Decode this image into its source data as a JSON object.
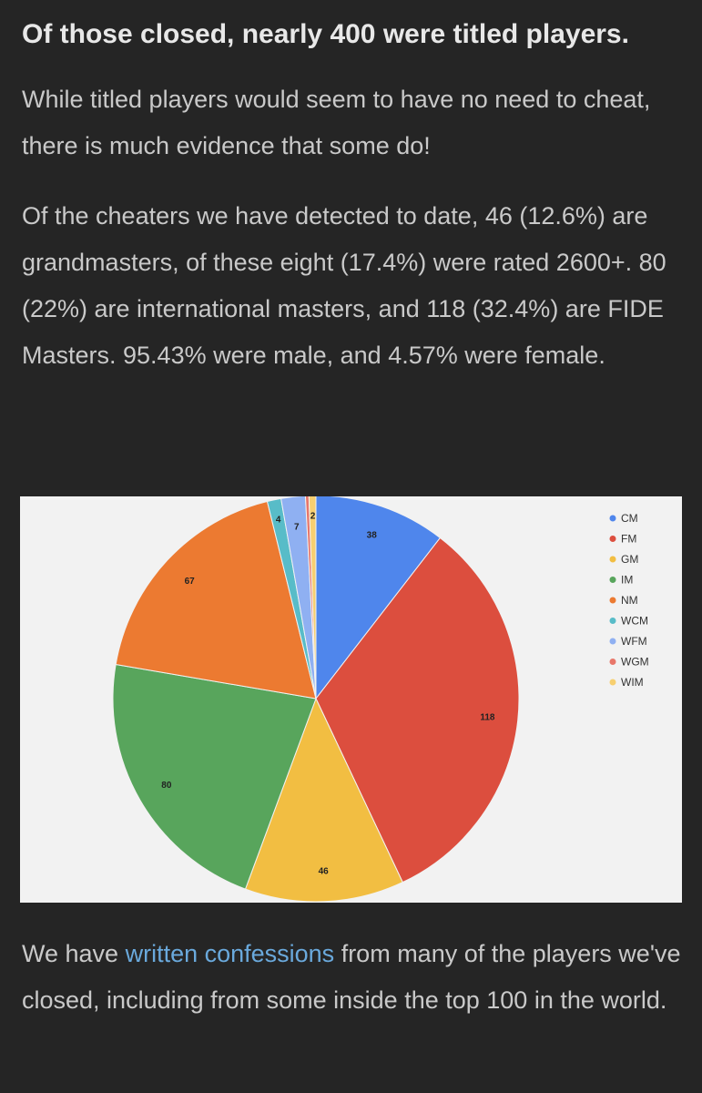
{
  "heading": "Of those closed, nearly 400 were titled players.",
  "paragraph1": "While titled players would seem to have no need to cheat, there is much evidence that some do!",
  "paragraph2": "Of the cheaters we have detected to date, 46 (12.6%) are grandmasters, of these eight (17.4%) were rated 2600+. 80 (22%) are international masters, and 118 (32.4%) are FIDE Masters. 95.43% were male, and 4.57% were female.",
  "paragraph3": {
    "before": "We have ",
    "link": "written confessions",
    "after": " from many of the players we've closed, including from some inside the top 100 in the world."
  },
  "chart_data": {
    "type": "pie",
    "title": "",
    "legend_position": "right",
    "categories": [
      "CM",
      "FM",
      "GM",
      "IM",
      "NM",
      "WCM",
      "WFM",
      "WGM",
      "WIM"
    ],
    "values": [
      38,
      118,
      46,
      80,
      67,
      4,
      7,
      1,
      2
    ],
    "data_labels": [
      "38",
      "118",
      "46",
      "80",
      "67",
      "4",
      "7",
      "",
      "2"
    ],
    "colors": [
      "#4f86ec",
      "#dc4e3e",
      "#f2be42",
      "#58a55c",
      "#ec7a31",
      "#58bcc8",
      "#8fb0f2",
      "#e8776a",
      "#f7cf70"
    ]
  }
}
